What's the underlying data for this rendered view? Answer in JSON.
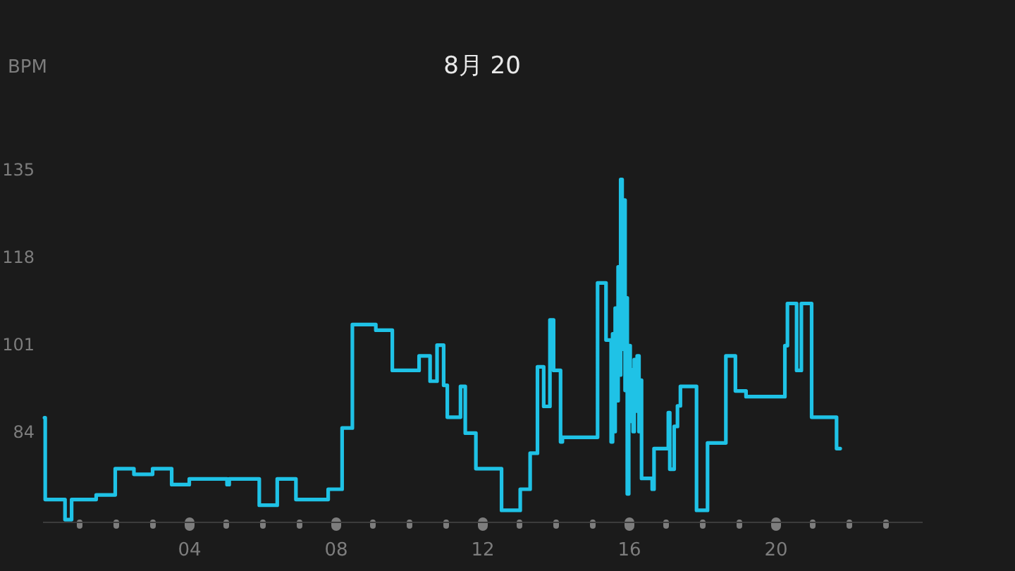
{
  "chart_data": {
    "type": "step",
    "title": "8月 20",
    "ylabel": "BPM",
    "x": [
      0.06,
      0.08,
      0.62,
      0.8,
      1.47,
      1.99,
      2.5,
      3.01,
      3.53,
      4.01,
      5.04,
      5.1,
      5.92,
      6.41,
      6.92,
      7.8,
      8.18,
      8.46,
      9.1,
      9.55,
      10.28,
      10.58,
      10.77,
      10.95,
      11.05,
      11.41,
      11.54,
      11.83,
      12.53,
      13.04,
      13.31,
      13.51,
      13.68,
      13.85,
      13.95,
      14.14,
      14.19,
      15.15,
      15.38,
      15.52,
      15.56,
      15.6,
      15.63,
      15.67,
      15.71,
      15.74,
      15.78,
      15.82,
      15.86,
      15.9,
      15.93,
      15.96,
      16.0,
      16.04,
      16.08,
      16.12,
      16.15,
      16.19,
      16.23,
      16.28,
      16.31,
      16.35,
      16.64,
      16.69,
      17.08,
      17.12,
      17.24,
      17.33,
      17.41,
      17.85,
      18.15,
      18.65,
      18.91,
      19.2,
      20.26,
      20.33,
      20.58,
      20.71,
      20.99,
      21.67,
      21.77
    ],
    "series": [
      {
        "color": "#1fc2e6",
        "values": [
          86.7,
          70.8,
          66.9,
          70.8,
          71.7,
          76.8,
          75.7,
          76.8,
          73.7,
          74.8,
          73.7,
          74.8,
          69.7,
          74.8,
          70.8,
          72.8,
          84.7,
          104.8,
          103.7,
          95.9,
          98.7,
          93.8,
          100.8,
          93.0,
          86.8,
          92.8,
          83.7,
          76.8,
          68.7,
          72.8,
          79.8,
          96.6,
          88.9,
          105.7,
          95.9,
          82.0,
          82.9,
          112.9,
          101.8,
          82,
          103,
          84,
          108,
          90,
          116,
          95,
          133,
          100,
          129,
          92,
          110,
          71.9,
          100.7,
          86,
          96,
          84,
          98,
          88,
          98.7,
          84,
          94,
          74.9,
          72.8,
          80.7,
          87.7,
          76.7,
          85,
          89,
          92.8,
          68.7,
          81.8,
          98.7,
          91.9,
          90.8,
          100.7,
          108.9,
          95.9,
          108.9,
          86.8,
          80.7,
          80.7
        ]
      }
    ],
    "xlim": [
      0,
      24
    ],
    "xticks": [
      {
        "value": 1,
        "label": null
      },
      {
        "value": 2,
        "label": null
      },
      {
        "value": 3,
        "label": null
      },
      {
        "value": 4,
        "label": "04"
      },
      {
        "value": 5,
        "label": null
      },
      {
        "value": 6,
        "label": null
      },
      {
        "value": 7,
        "label": null
      },
      {
        "value": 8,
        "label": "08"
      },
      {
        "value": 9,
        "label": null
      },
      {
        "value": 10,
        "label": null
      },
      {
        "value": 11,
        "label": null
      },
      {
        "value": 12,
        "label": "12"
      },
      {
        "value": 13,
        "label": null
      },
      {
        "value": 14,
        "label": null
      },
      {
        "value": 15,
        "label": null
      },
      {
        "value": 16,
        "label": "16"
      },
      {
        "value": 17,
        "label": null
      },
      {
        "value": 18,
        "label": null
      },
      {
        "value": 19,
        "label": null
      },
      {
        "value": 20,
        "label": "20"
      },
      {
        "value": 21,
        "label": null
      },
      {
        "value": 22,
        "label": null
      },
      {
        "value": 23,
        "label": null
      }
    ],
    "ylim": [
      66.5,
      135
    ],
    "yticks": [
      84,
      101,
      118,
      135
    ],
    "line_style": "solid"
  }
}
